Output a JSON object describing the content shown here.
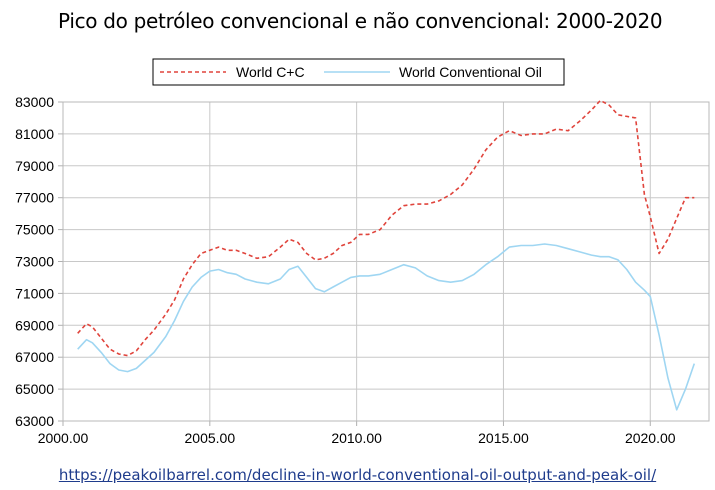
{
  "title": "Pico do petróleo convencional e não convencional: 2000-2020",
  "source_link": "https://peakoilbarrel.com/decline-in-world-conventional-oil-output-and-peak-oil/",
  "chart_data": {
    "type": "line",
    "title": "Pico do petróleo convencional e não convencional: 2000-2020",
    "xlabel": "",
    "ylabel": "",
    "xlim": [
      2000,
      2022
    ],
    "ylim": [
      63000,
      83000
    ],
    "x_ticks": [
      2000,
      2005,
      2010,
      2015,
      2020
    ],
    "x_tick_labels": [
      "2000.00",
      "2005.00",
      "2010.00",
      "2015.00",
      "2020.00"
    ],
    "y_ticks": [
      63000,
      65000,
      67000,
      69000,
      71000,
      73000,
      75000,
      77000,
      79000,
      81000,
      83000
    ],
    "y_tick_labels": [
      "63000",
      "65000",
      "67000",
      "69000",
      "71000",
      "73000",
      "75000",
      "77000",
      "79000",
      "81000",
      "83000"
    ],
    "grid": true,
    "legend_position": "top-center",
    "series": [
      {
        "name": "World C+C",
        "color": "#e0443c",
        "style": "dashed",
        "x": [
          2000.5,
          2000.8,
          2001.0,
          2001.3,
          2001.6,
          2001.9,
          2002.2,
          2002.5,
          2002.8,
          2003.1,
          2003.5,
          2003.8,
          2004.1,
          2004.4,
          2004.7,
          2005.0,
          2005.3,
          2005.6,
          2005.9,
          2006.2,
          2006.6,
          2007.0,
          2007.4,
          2007.7,
          2008.0,
          2008.3,
          2008.6,
          2008.9,
          2009.2,
          2009.5,
          2009.8,
          2010.1,
          2010.4,
          2010.8,
          2011.2,
          2011.6,
          2012.0,
          2012.4,
          2012.8,
          2013.2,
          2013.6,
          2014.0,
          2014.4,
          2014.8,
          2015.2,
          2015.6,
          2016.0,
          2016.4,
          2016.8,
          2017.2,
          2017.6,
          2018.0,
          2018.3,
          2018.6,
          2018.9,
          2019.2,
          2019.5,
          2019.8,
          2020.0,
          2020.3,
          2020.6,
          2020.9,
          2021.2,
          2021.5
        ],
        "values": [
          68500,
          69100,
          68900,
          68200,
          67500,
          67200,
          67100,
          67400,
          68100,
          68700,
          69700,
          70600,
          71900,
          72800,
          73500,
          73700,
          73900,
          73700,
          73700,
          73500,
          73200,
          73300,
          73900,
          74400,
          74200,
          73500,
          73100,
          73200,
          73500,
          74000,
          74200,
          74700,
          74700,
          75000,
          75900,
          76500,
          76600,
          76600,
          76800,
          77200,
          77800,
          78800,
          80000,
          80800,
          81200,
          80900,
          81000,
          81000,
          81300,
          81200,
          81800,
          82500,
          83100,
          82800,
          82200,
          82100,
          82000,
          77200,
          75800,
          73500,
          74400,
          75700,
          77000,
          77000
        ]
      },
      {
        "name": "World Conventional Oil",
        "color": "#9fd6f2",
        "style": "solid",
        "x": [
          2000.5,
          2000.8,
          2001.0,
          2001.3,
          2001.6,
          2001.9,
          2002.2,
          2002.5,
          2002.8,
          2003.1,
          2003.5,
          2003.8,
          2004.1,
          2004.4,
          2004.7,
          2005.0,
          2005.3,
          2005.6,
          2005.9,
          2006.2,
          2006.6,
          2007.0,
          2007.4,
          2007.7,
          2008.0,
          2008.3,
          2008.6,
          2008.9,
          2009.2,
          2009.5,
          2009.8,
          2010.1,
          2010.4,
          2010.8,
          2011.2,
          2011.6,
          2012.0,
          2012.4,
          2012.8,
          2013.2,
          2013.6,
          2014.0,
          2014.4,
          2014.8,
          2015.2,
          2015.6,
          2016.0,
          2016.4,
          2016.8,
          2017.2,
          2017.6,
          2018.0,
          2018.3,
          2018.6,
          2018.9,
          2019.2,
          2019.5,
          2019.8,
          2020.0,
          2020.3,
          2020.6,
          2020.9,
          2021.2,
          2021.5
        ],
        "values": [
          67500,
          68100,
          67900,
          67300,
          66600,
          66200,
          66100,
          66300,
          66800,
          67300,
          68300,
          69300,
          70500,
          71400,
          72000,
          72400,
          72500,
          72300,
          72200,
          71900,
          71700,
          71600,
          71900,
          72500,
          72700,
          72000,
          71300,
          71100,
          71400,
          71700,
          72000,
          72100,
          72100,
          72200,
          72500,
          72800,
          72600,
          72100,
          71800,
          71700,
          71800,
          72200,
          72800,
          73300,
          73900,
          74000,
          74000,
          74100,
          74000,
          73800,
          73600,
          73400,
          73300,
          73300,
          73100,
          72500,
          71700,
          71200,
          70800,
          68400,
          65700,
          63700,
          65000,
          66600
        ]
      }
    ]
  }
}
